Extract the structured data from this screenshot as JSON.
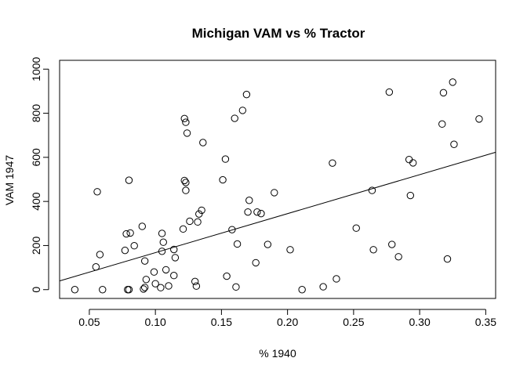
{
  "chart_data": {
    "type": "scatter",
    "title": "Michigan VAM vs % Tractor",
    "xlabel": "% 1940",
    "ylabel": "VAM 1947",
    "xlim": [
      0.0275,
      0.3575
    ],
    "ylim": [
      -40,
      1040
    ],
    "xticks": [
      0.05,
      0.1,
      0.15,
      0.2,
      0.25,
      0.3,
      0.35
    ],
    "xtick_labels": [
      "0.05",
      "0.10",
      "0.15",
      "0.20",
      "0.25",
      "0.30",
      "0.35"
    ],
    "yticks": [
      0,
      200,
      400,
      600,
      800,
      1000
    ],
    "ytick_labels": [
      "0",
      "200",
      "400",
      "600",
      "800",
      "1000"
    ],
    "grid": false,
    "legend": "none",
    "fit_line": {
      "intercept": -9,
      "slope": 1768
    },
    "points": [
      [
        0.039,
        0
      ],
      [
        0.055,
        103
      ],
      [
        0.056,
        444
      ],
      [
        0.058,
        159
      ],
      [
        0.06,
        0
      ],
      [
        0.077,
        178
      ],
      [
        0.078,
        253
      ],
      [
        0.079,
        0
      ],
      [
        0.08,
        0
      ],
      [
        0.08,
        496
      ],
      [
        0.081,
        257
      ],
      [
        0.084,
        199
      ],
      [
        0.09,
        287
      ],
      [
        0.091,
        3
      ],
      [
        0.092,
        10
      ],
      [
        0.092,
        130
      ],
      [
        0.093,
        46
      ],
      [
        0.099,
        80
      ],
      [
        0.1,
        27
      ],
      [
        0.104,
        9
      ],
      [
        0.105,
        255
      ],
      [
        0.105,
        174
      ],
      [
        0.106,
        215
      ],
      [
        0.108,
        90
      ],
      [
        0.11,
        17
      ],
      [
        0.114,
        182
      ],
      [
        0.114,
        64
      ],
      [
        0.115,
        145
      ],
      [
        0.121,
        275
      ],
      [
        0.122,
        776
      ],
      [
        0.122,
        495
      ],
      [
        0.123,
        759
      ],
      [
        0.123,
        486
      ],
      [
        0.123,
        450
      ],
      [
        0.124,
        710
      ],
      [
        0.126,
        310
      ],
      [
        0.13,
        37
      ],
      [
        0.131,
        16
      ],
      [
        0.132,
        307
      ],
      [
        0.133,
        343
      ],
      [
        0.135,
        360
      ],
      [
        0.136,
        667
      ],
      [
        0.151,
        498
      ],
      [
        0.153,
        592
      ],
      [
        0.154,
        61
      ],
      [
        0.158,
        272
      ],
      [
        0.16,
        777
      ],
      [
        0.161,
        12
      ],
      [
        0.162,
        207
      ],
      [
        0.166,
        813
      ],
      [
        0.169,
        885
      ],
      [
        0.17,
        352
      ],
      [
        0.171,
        405
      ],
      [
        0.176,
        122
      ],
      [
        0.177,
        352
      ],
      [
        0.18,
        345
      ],
      [
        0.185,
        205
      ],
      [
        0.19,
        440
      ],
      [
        0.202,
        181
      ],
      [
        0.211,
        0
      ],
      [
        0.227,
        13
      ],
      [
        0.234,
        574
      ],
      [
        0.237,
        49
      ],
      [
        0.252,
        279
      ],
      [
        0.264,
        450
      ],
      [
        0.265,
        181
      ],
      [
        0.277,
        896
      ],
      [
        0.279,
        205
      ],
      [
        0.284,
        149
      ],
      [
        0.292,
        590
      ],
      [
        0.293,
        427
      ],
      [
        0.295,
        575
      ],
      [
        0.317,
        751
      ],
      [
        0.318,
        893
      ],
      [
        0.321,
        139
      ],
      [
        0.325,
        941
      ],
      [
        0.326,
        659
      ],
      [
        0.345,
        774
      ]
    ]
  }
}
